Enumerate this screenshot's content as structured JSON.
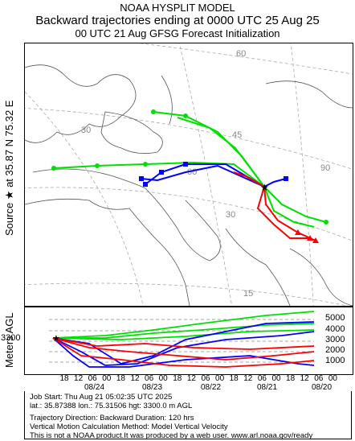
{
  "header": {
    "model": "NOAA HYSPLIT MODEL",
    "title": "Backward trajectories ending at 0000 UTC 25 Aug 25",
    "subtitle": "00 UTC 21 Aug    GFSG  Forecast Initialization"
  },
  "source_label": "Source ★  at   35.87 N   75.32 E",
  "alt_axis_label": "Meters AGL",
  "map": {
    "lat_labels": [
      "60",
      "45",
      "30",
      "15"
    ],
    "lon_labels": [
      "30",
      "60",
      "90"
    ]
  },
  "altitude": {
    "start_label": "3300",
    "right_labels": [
      "5000",
      "4000",
      "3000",
      "2000",
      "1000"
    ],
    "hour_ticks": [
      "18",
      "12",
      "06",
      "00",
      "18",
      "12",
      "06",
      "00",
      "18",
      "12",
      "06",
      "00",
      "18",
      "12",
      "06",
      "00",
      "18",
      "12",
      "06",
      "00"
    ],
    "date_labels": [
      "08/24",
      "08/23",
      "08/22",
      "08/21",
      "08/20"
    ]
  },
  "footer": {
    "line1": "Job Start: Thu Aug 21 05:02:35 UTC 2025",
    "line2": "lat.: 35.87388   lon.: 75.31506   hgt: 3300.0 m AGL",
    "line3": "Trajectory Direction: Backward       Duration: 120 hrs",
    "line4": "Vertical Motion Calculation Method: Model Vertical Velocity",
    "line5": "This is not a NOAA product.It was produced by a web user. www.arl.noaa.gov/ready"
  },
  "colors": {
    "red": "#ff0000",
    "blue": "#0000ff",
    "green": "#00e000"
  }
}
